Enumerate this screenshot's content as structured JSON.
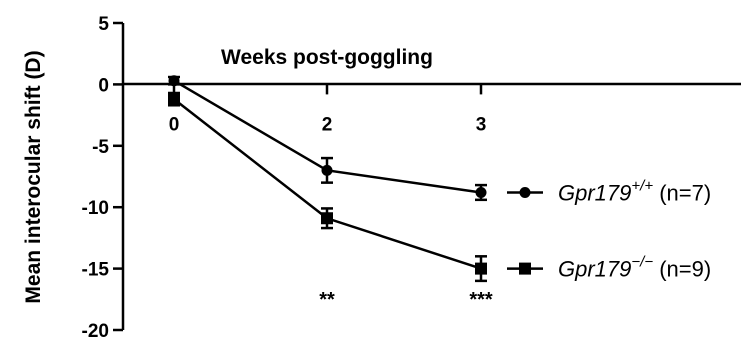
{
  "chart_data": {
    "type": "line",
    "title": "",
    "xlabel": "Weeks post-goggling",
    "ylabel": "Mean interocular shift (D)",
    "ylim": [
      -20,
      5
    ],
    "yticks": [
      5,
      0,
      -5,
      -10,
      -15,
      -20
    ],
    "ytick_labels": [
      "5",
      "0",
      "-5",
      "-10",
      "-15",
      "-20"
    ],
    "x_categories": [
      "0",
      "2",
      "3"
    ],
    "series": [
      {
        "name_base": "Gpr179",
        "name_sup": "+/+",
        "name_suffix": " (n=7)",
        "marker": "circle",
        "values": [
          0.3,
          -7.0,
          -8.8
        ],
        "errors": [
          0.3,
          1.0,
          0.6
        ]
      },
      {
        "name_base": "Gpr179",
        "name_sup": "−/−",
        "name_suffix": " (n=9)",
        "marker": "square",
        "values": [
          -1.2,
          -10.9,
          -15.0
        ],
        "errors": [
          0.5,
          0.8,
          1.0
        ]
      }
    ],
    "significance": [
      "",
      "**",
      "***"
    ],
    "legend_position": "right",
    "grid": false
  }
}
